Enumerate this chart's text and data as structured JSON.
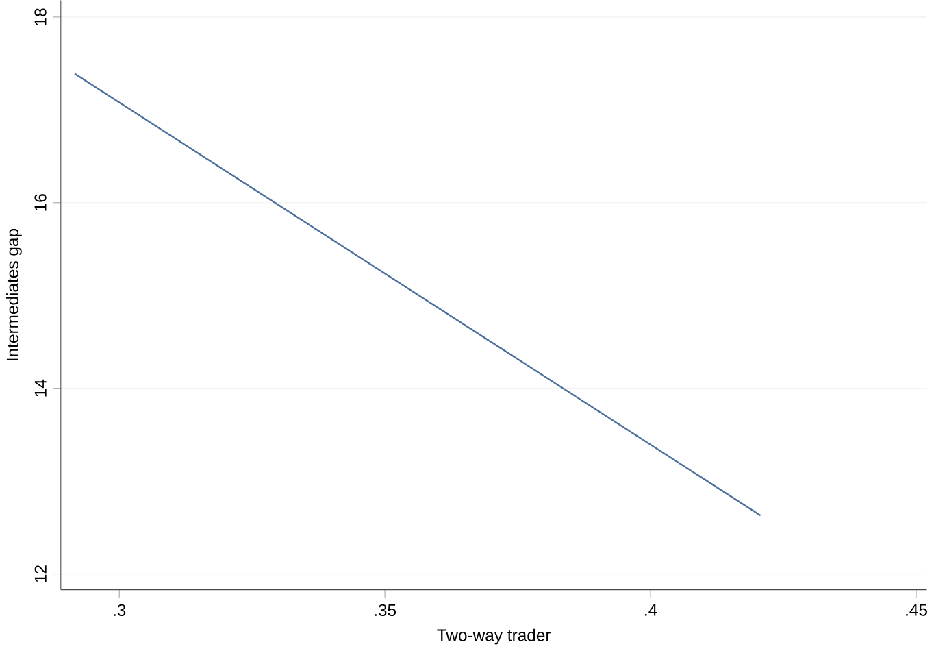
{
  "chart_data": {
    "type": "line",
    "xlabel": "Two-way trader",
    "ylabel": "Intermediates gap",
    "x": [
      0.2916,
      0.4207
    ],
    "series": [
      {
        "color": "#4a6f9a",
        "values": [
          17.39,
          12.63
        ]
      }
    ],
    "xlim": [
      0.289,
      0.452
    ],
    "ylim": [
      11.83,
      18.18
    ],
    "xticks": [
      {
        "value": 0.3,
        "label": ".3"
      },
      {
        "value": 0.35,
        "label": ".35"
      },
      {
        "value": 0.4,
        "label": ".4"
      },
      {
        "value": 0.45,
        "label": ".45"
      }
    ],
    "yticks": [
      12,
      14,
      16,
      18
    ],
    "grid": "y",
    "marker": "none",
    "line_style": "solid"
  }
}
